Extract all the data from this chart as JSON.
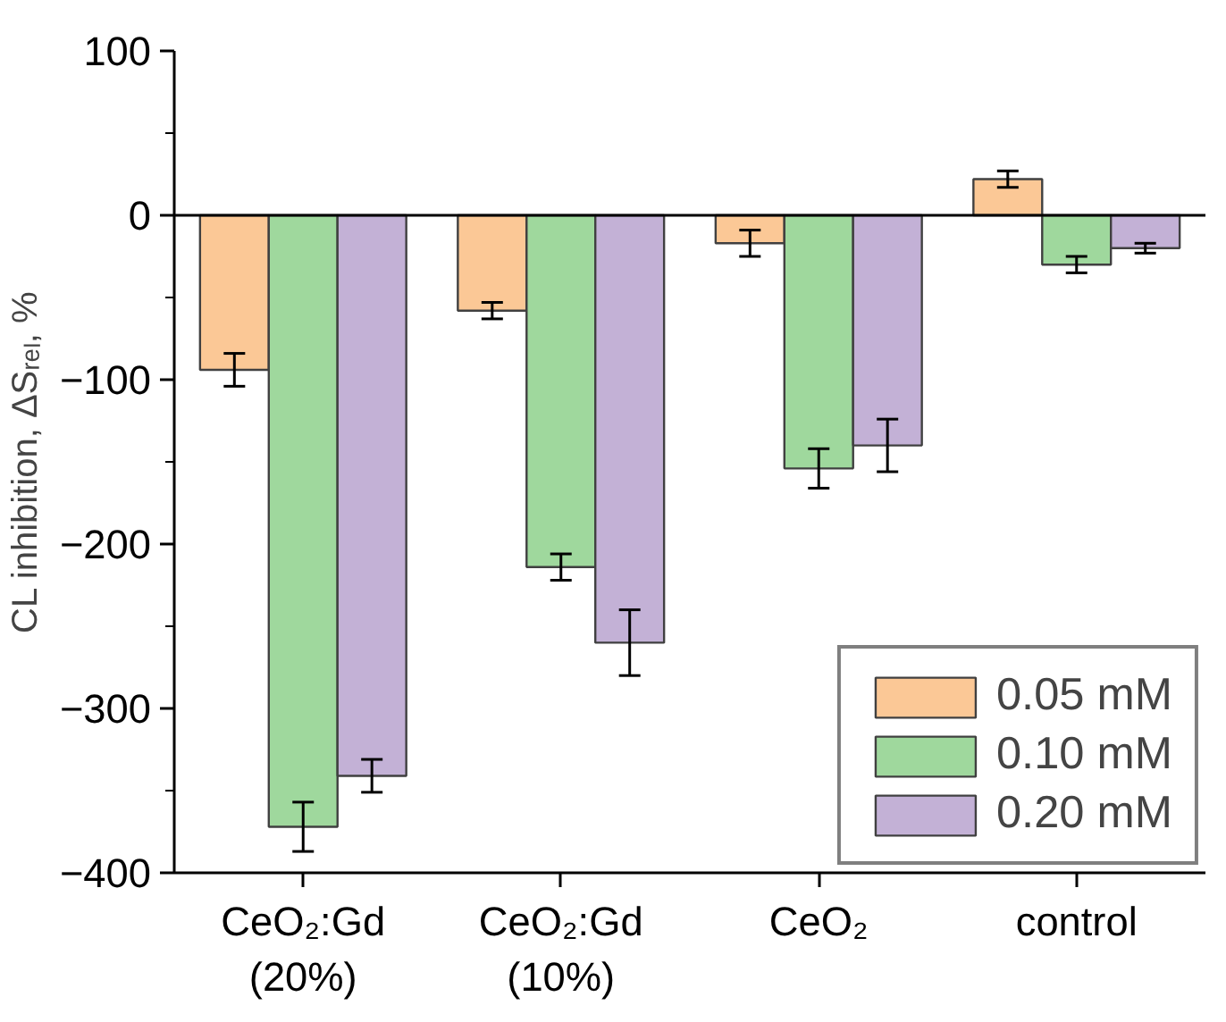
{
  "chart_data": {
    "type": "bar",
    "ylabel": "CL inhibition, ΔSᵣₑₗ, %",
    "categories": [
      "CeO₂:Gd\n(20%)",
      "CeO₂:Gd\n(10%)",
      "CeO₂",
      "control"
    ],
    "series": [
      {
        "name": "0.05 mM",
        "color": "#fbc896",
        "values": [
          -94,
          -58,
          -17,
          22
        ],
        "errors": [
          10,
          5,
          8,
          5
        ]
      },
      {
        "name": "0.10 mM",
        "color": "#9fd89d",
        "values": [
          -372,
          -214,
          -154,
          -30
        ],
        "errors": [
          15,
          8,
          12,
          5
        ]
      },
      {
        "name": "0.20 mM",
        "color": "#c3b1d6",
        "values": [
          -341,
          -260,
          -140,
          -20
        ],
        "errors": [
          10,
          20,
          16,
          3
        ]
      }
    ],
    "ylim": [
      -400,
      100
    ],
    "yticks": [
      100,
      {
        "value": 50,
        "label": null
      },
      0,
      {
        "value": -50,
        "label": null
      },
      -100,
      {
        "value": -150,
        "label": null
      },
      -200,
      {
        "value": -250,
        "label": null
      },
      -300,
      {
        "value": -350,
        "label": null
      },
      -400
    ],
    "ref_lines": [
      {
        "axis": "y",
        "value": 0,
        "label": null
      }
    ],
    "grid": false,
    "legend": "bottom right"
  }
}
